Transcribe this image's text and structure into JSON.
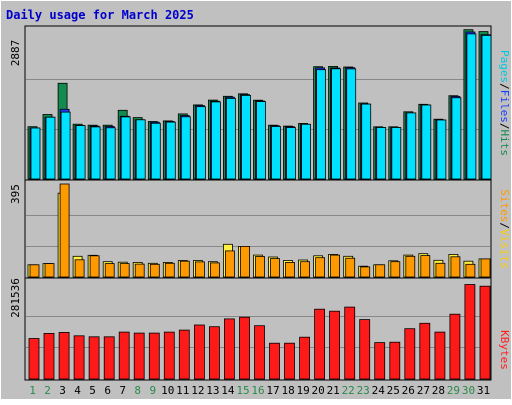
{
  "chart_data": {
    "type": "bar",
    "title": "Daily usage for March 2025",
    "days": [
      "1",
      "2",
      "3",
      "4",
      "5",
      "6",
      "7",
      "8",
      "9",
      "10",
      "11",
      "12",
      "13",
      "14",
      "15",
      "16",
      "17",
      "18",
      "19",
      "20",
      "21",
      "22",
      "23",
      "24",
      "25",
      "26",
      "27",
      "28",
      "29",
      "30",
      "31"
    ],
    "weekend_days": [
      "1",
      "2",
      "8",
      "9",
      "15",
      "16",
      "22",
      "23",
      "29",
      "30"
    ],
    "colors": {
      "background": "#c0c0c0",
      "title": "#0000cc",
      "weekday_label": "#000000",
      "weekend_label": "#2a8a4a",
      "hits": "#138a50",
      "files": "#1a3cff",
      "pages": "#00e0ff",
      "visits": "#ffee44",
      "sites": "#ff9900",
      "kbytes": "#ff1a1a"
    },
    "panels": [
      {
        "id": "requests",
        "scale_label": "2887",
        "ymax": 2887,
        "legend": [
          {
            "text": "Pages",
            "color": "#00c8e0"
          },
          {
            "text": "/",
            "color": "#000000"
          },
          {
            "text": "Files",
            "color": "#1a3cff"
          },
          {
            "text": "/",
            "color": "#000000"
          },
          {
            "text": "Hits",
            "color": "#138a50"
          }
        ],
        "series": [
          {
            "name": "Hits",
            "color": "#138a50",
            "values": [
              1007,
              1242,
              1841,
              1055,
              1035,
              1035,
              1322,
              1181,
              1106,
              1118,
              1252,
              1426,
              1519,
              1591,
              1640,
              1516,
              1035,
              1019,
              1071,
              2161,
              2168,
              2155,
              1462,
              1005,
              1005,
              1294,
              1438,
              1151,
              1603,
              2873,
              2836
            ]
          },
          {
            "name": "Files",
            "color": "#1a3cff",
            "values": [
              982,
              1190,
              1341,
              1028,
              1019,
              1010,
              1206,
              1140,
              1094,
              1106,
              1221,
              1413,
              1498,
              1574,
              1624,
              1501,
              1024,
              1006,
              1052,
              2139,
              2137,
              2143,
              1442,
              992,
              991,
              1272,
              1424,
              1136,
              1587,
              2830,
              2778
            ]
          },
          {
            "name": "Pages",
            "color": "#00e0ff",
            "values": [
              982,
              1190,
              1288,
              1028,
              1003,
              985,
              1195,
              1140,
              1073,
              1096,
              1197,
              1392,
              1483,
              1551,
              1609,
              1489,
              1010,
              990,
              1052,
              2104,
              2121,
              2119,
              1442,
              992,
              991,
              1272,
              1424,
              1136,
              1563,
              2792,
              2764
            ]
          }
        ]
      },
      {
        "id": "visitors",
        "scale_label": "395",
        "ymax": 395,
        "legend": [
          {
            "text": "Sites",
            "color": "#ff9900"
          },
          {
            "text": "/",
            "color": "#000000"
          },
          {
            "text": "Visits",
            "color": "#ffcc00"
          }
        ],
        "series": [
          {
            "name": "Visits",
            "color": "#ffee44",
            "values": [
              52,
              57,
              356,
              88,
              92,
              65,
              63,
              62,
              58,
              62,
              70,
              70,
              65,
              139,
              130,
              93,
              85,
              70,
              72,
              90,
              96,
              88,
              46,
              52,
              69,
              93,
              99,
              71,
              96,
              67,
              77
            ]
          },
          {
            "name": "Sites",
            "color": "#ff9900",
            "values": [
              52,
              57,
              395,
              73,
              90,
              57,
              57,
              55,
              54,
              58,
              67,
              64,
              60,
              111,
              130,
              87,
              78,
              62,
              65,
              82,
              93,
              80,
              43,
              52,
              65,
              88,
              91,
              58,
              86,
              54,
              77
            ]
          }
        ]
      },
      {
        "id": "kbytes",
        "scale_label": "281536",
        "ymax": 281536,
        "legend": [
          {
            "text": "KBytes",
            "color": "#ff1a1a"
          }
        ],
        "series": [
          {
            "name": "KBytes",
            "color": "#ff1a1a",
            "values": [
              120000,
              135000,
              138000,
              128000,
              125000,
              125000,
              139000,
              136000,
              136000,
              139000,
              145000,
              160000,
              155000,
              178000,
              183000,
              158000,
              106000,
              106000,
              124000,
              207000,
              201000,
              213000,
              176000,
              108000,
              109000,
              149000,
              165000,
              139000,
              192000,
              280000,
              275000
            ]
          }
        ]
      }
    ]
  }
}
